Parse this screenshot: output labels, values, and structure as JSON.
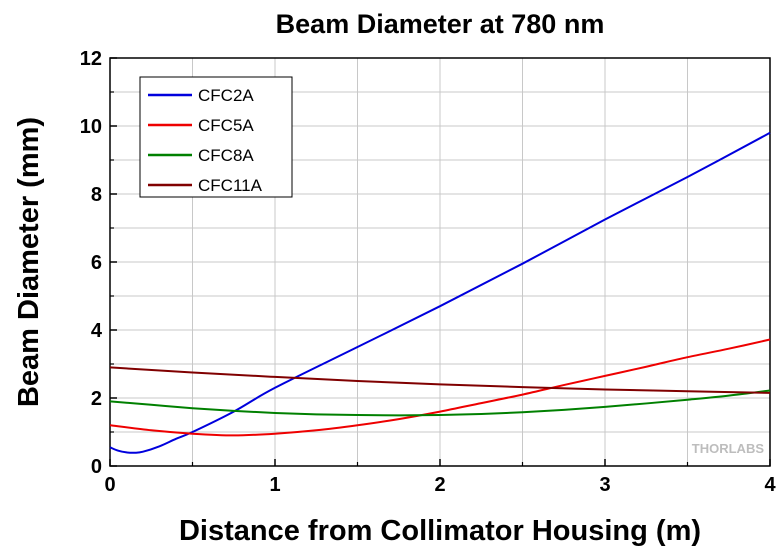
{
  "chart_data": {
    "type": "line",
    "title": "Beam Diameter at 780 nm",
    "xlabel": "Distance from Collimator Housing (m)",
    "ylabel": "Beam Diameter (mm)",
    "xlim": [
      0,
      4
    ],
    "ylim": [
      0,
      12
    ],
    "xticks": [
      0,
      1,
      2,
      3,
      4
    ],
    "yticks": [
      0,
      2,
      4,
      6,
      8,
      10,
      12
    ],
    "grid": true,
    "legend_position": "top-left",
    "watermark": "THORLABS",
    "series": [
      {
        "name": "CFC2A",
        "color": "#0000dd",
        "x": [
          0,
          0.05,
          0.1,
          0.15,
          0.2,
          0.3,
          0.4,
          0.5,
          0.75,
          1.0,
          1.5,
          2.0,
          2.5,
          3.0,
          3.5,
          4.0
        ],
        "y": [
          0.55,
          0.45,
          0.4,
          0.39,
          0.42,
          0.58,
          0.8,
          1.0,
          1.6,
          2.3,
          3.5,
          4.7,
          5.95,
          7.25,
          8.5,
          9.8
        ]
      },
      {
        "name": "CFC5A",
        "color": "#ee0000",
        "x": [
          0,
          0.25,
          0.5,
          0.75,
          1.0,
          1.25,
          1.5,
          1.75,
          2.0,
          2.25,
          2.5,
          2.75,
          3.0,
          3.25,
          3.5,
          3.75,
          4.0
        ],
        "y": [
          1.2,
          1.05,
          0.95,
          0.9,
          0.95,
          1.05,
          1.2,
          1.38,
          1.6,
          1.85,
          2.1,
          2.38,
          2.65,
          2.92,
          3.2,
          3.45,
          3.72
        ]
      },
      {
        "name": "CFC8A",
        "color": "#008000",
        "x": [
          0,
          0.25,
          0.5,
          0.75,
          1.0,
          1.25,
          1.5,
          1.75,
          2.0,
          2.25,
          2.5,
          2.75,
          3.0,
          3.25,
          3.5,
          3.75,
          4.0
        ],
        "y": [
          1.9,
          1.8,
          1.7,
          1.62,
          1.56,
          1.52,
          1.5,
          1.49,
          1.5,
          1.53,
          1.58,
          1.65,
          1.74,
          1.84,
          1.95,
          2.07,
          2.22
        ]
      },
      {
        "name": "CFC11A",
        "color": "#800000",
        "x": [
          0,
          0.5,
          1.0,
          1.5,
          2.0,
          2.5,
          3.0,
          3.5,
          4.0
        ],
        "y": [
          2.9,
          2.75,
          2.62,
          2.5,
          2.4,
          2.32,
          2.25,
          2.2,
          2.15
        ]
      }
    ]
  }
}
